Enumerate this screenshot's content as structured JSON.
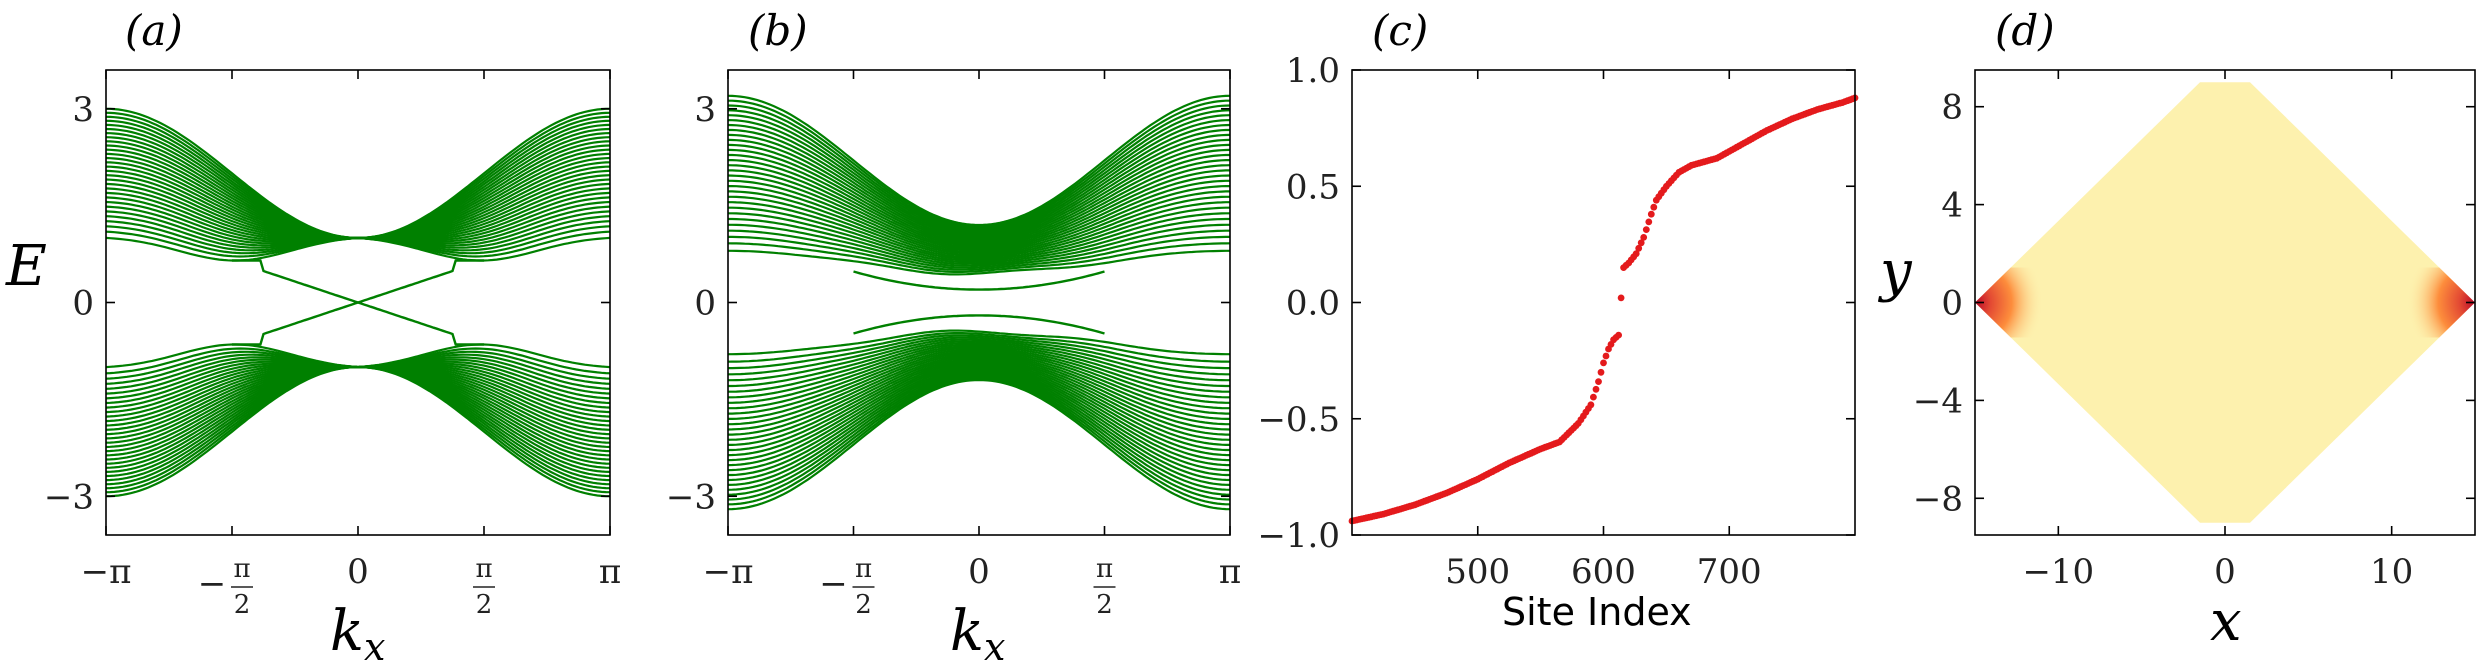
{
  "chart_data": [
    {
      "panel": "(a)",
      "type": "line",
      "xlabel": "k_x",
      "ylabel": "E",
      "xlim": [
        -3.1416,
        3.1416
      ],
      "ylim": [
        -3.6,
        3.6
      ],
      "xticks": [
        {
          "value": -3.1416,
          "label": "−π"
        },
        {
          "value": -1.5708,
          "label": "−π/2"
        },
        {
          "value": 0,
          "label": "0"
        },
        {
          "value": 1.5708,
          "label": "π/2"
        },
        {
          "value": 3.1416,
          "label": "π"
        }
      ],
      "yticks": [
        {
          "value": -3,
          "label": "−3"
        },
        {
          "value": 0,
          "label": "0"
        },
        {
          "value": 3,
          "label": "3"
        }
      ],
      "color": "#008000",
      "bands": {
        "count": 30,
        "top_edge_at_pi": 3.0,
        "top_edge_at_0": 1.0,
        "bottom_edge_at_pi": 1.0,
        "bottom_edge_at_0": 1.0
      },
      "edge_states": {
        "crossing_at_k": 0,
        "crossing_energy": 0,
        "endpoint_k": 1.5708,
        "endpoint_energy": 0.65
      }
    },
    {
      "panel": "(b)",
      "type": "line",
      "xlabel": "k_x",
      "ylabel": "",
      "xlim": [
        -3.1416,
        3.1416
      ],
      "ylim": [
        -3.6,
        3.6
      ],
      "xticks": [
        {
          "value": -3.1416,
          "label": "−π"
        },
        {
          "value": -1.5708,
          "label": "−π/2"
        },
        {
          "value": 0,
          "label": "0"
        },
        {
          "value": 1.5708,
          "label": "π/2"
        },
        {
          "value": 3.1416,
          "label": "π"
        }
      ],
      "yticks": [
        {
          "value": -3,
          "label": "−3"
        },
        {
          "value": 0,
          "label": "0"
        },
        {
          "value": 3,
          "label": "3"
        }
      ],
      "color": "#008000",
      "bands": {
        "count": 30,
        "top_edge_at_pi": 3.2,
        "top_edge_at_0": 1.2,
        "bottom_edge_at_pi": 0.8,
        "bottom_edge_at_0": 0.45
      },
      "edge_states": {
        "gap_at_k0": 0.2,
        "endpoint_k": 1.5708,
        "endpoint_energy": 0.48
      }
    },
    {
      "panel": "(c)",
      "type": "scatter",
      "xlabel": "Site Index",
      "ylabel": "",
      "xlim": [
        400,
        800
      ],
      "ylim": [
        -1.0,
        1.0
      ],
      "xticks": [
        {
          "value": 500,
          "label": "500"
        },
        {
          "value": 600,
          "label": "600"
        },
        {
          "value": 700,
          "label": "700"
        }
      ],
      "yticks": [
        {
          "value": -1.0,
          "label": "−1.0"
        },
        {
          "value": -0.5,
          "label": "−0.5"
        },
        {
          "value": 0.0,
          "label": "0.0"
        },
        {
          "value": 0.5,
          "label": "0.5"
        },
        {
          "value": 1.0,
          "label": "1.0"
        }
      ],
      "color": "#e41a1c",
      "points": [
        [
          400,
          -0.94
        ],
        [
          425,
          -0.91
        ],
        [
          450,
          -0.87
        ],
        [
          475,
          -0.82
        ],
        [
          500,
          -0.76
        ],
        [
          525,
          -0.69
        ],
        [
          550,
          -0.63
        ],
        [
          565,
          -0.6
        ],
        [
          580,
          -0.52
        ],
        [
          590,
          -0.44
        ],
        [
          596,
          -0.34
        ],
        [
          600,
          -0.26
        ],
        [
          604,
          -0.2
        ],
        [
          608,
          -0.16
        ],
        [
          612,
          -0.14
        ],
        [
          614,
          0.02
        ],
        [
          616,
          0.15
        ],
        [
          620,
          0.17
        ],
        [
          626,
          0.21
        ],
        [
          632,
          0.28
        ],
        [
          638,
          0.38
        ],
        [
          642,
          0.44
        ],
        [
          650,
          0.5
        ],
        [
          660,
          0.56
        ],
        [
          670,
          0.59
        ],
        [
          690,
          0.62
        ],
        [
          710,
          0.68
        ],
        [
          730,
          0.74
        ],
        [
          750,
          0.79
        ],
        [
          770,
          0.83
        ],
        [
          790,
          0.86
        ],
        [
          800,
          0.88
        ]
      ]
    },
    {
      "panel": "(d)",
      "type": "heatmap",
      "xlabel": "x",
      "ylabel": "y",
      "xlim": [
        -15,
        15
      ],
      "ylim": [
        -9.5,
        9.5
      ],
      "xticks": [
        {
          "value": -10,
          "label": "−10"
        },
        {
          "value": 0,
          "label": "0"
        },
        {
          "value": 10,
          "label": "10"
        }
      ],
      "yticks": [
        {
          "value": -8,
          "label": "−8"
        },
        {
          "value": -4,
          "label": "−4"
        },
        {
          "value": 0,
          "label": "0"
        },
        {
          "value": 4,
          "label": "4"
        },
        {
          "value": 8,
          "label": "8"
        }
      ],
      "colormap": "YlOrRd",
      "background_color": "#fdf1ae",
      "peak_color": "#b50026",
      "domain_vertices": [
        [
          -15,
          0
        ],
        [
          -1.5,
          9
        ],
        [
          1.5,
          9
        ],
        [
          15,
          0
        ],
        [
          1.5,
          -9
        ],
        [
          -1.5,
          -9
        ]
      ],
      "hotspots": [
        [
          -14.5,
          0
        ],
        [
          14.5,
          0
        ]
      ]
    }
  ]
}
